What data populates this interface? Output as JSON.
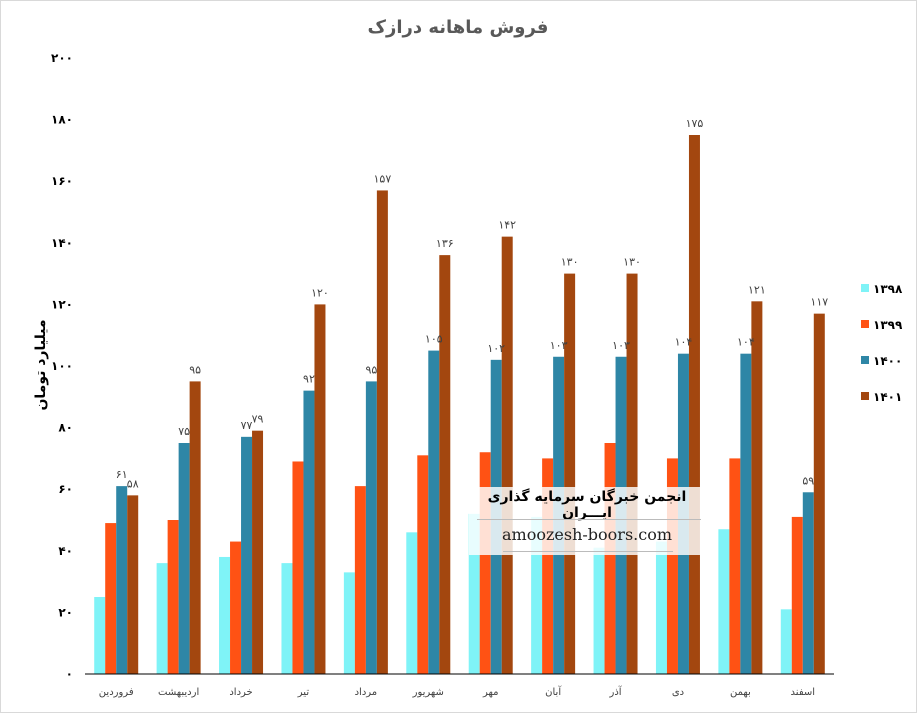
{
  "chart_data": {
    "type": "bar",
    "title": "فروش ماهانه درازک",
    "ylabel": "میلیارد تومان",
    "xlabel": "",
    "ylim": [
      0,
      200
    ],
    "yticks": [
      "۰",
      "۲۰",
      "۴۰",
      "۶۰",
      "۸۰",
      "۱۰۰",
      "۱۲۰",
      "۱۴۰",
      "۱۶۰",
      "۱۸۰",
      "۲۰۰"
    ],
    "ytick_values": [
      0,
      20,
      40,
      60,
      80,
      100,
      120,
      140,
      160,
      180,
      200
    ],
    "grid": false,
    "legend_position": "right",
    "categories": [
      "فروردین",
      "اردیبهشت",
      "خرداد",
      "تیر",
      "مرداد",
      "شهریور",
      "مهر",
      "آبان",
      "آذر",
      "دی",
      "بهمن",
      "اسفند"
    ],
    "series": [
      {
        "name": "۱۳۹۸",
        "color": "#7ff3f7",
        "values": [
          25,
          36,
          38,
          36,
          33,
          46,
          52,
          51,
          41,
          43,
          47,
          21
        ],
        "labels": [
          "",
          "",
          "",
          "",
          "",
          "",
          "",
          "",
          "",
          "",
          "",
          ""
        ]
      },
      {
        "name": "۱۳۹۹",
        "color": "#ff5214",
        "values": [
          49,
          50,
          43,
          69,
          61,
          71,
          72,
          70,
          75,
          70,
          70,
          51
        ],
        "labels": [
          "",
          "",
          "",
          "",
          "",
          "",
          "",
          "",
          "",
          "",
          "",
          ""
        ]
      },
      {
        "name": "۱۴۰۰",
        "color": "#2e86a6",
        "values": [
          61,
          75,
          77,
          92,
          95,
          105,
          102,
          103,
          103,
          104,
          104,
          59
        ],
        "labels": [
          "۶۱",
          "۷۵",
          "۷۷",
          "۹۲",
          "۹۵",
          "۱۰۵",
          "۱۰۲",
          "۱۰۳",
          "۱۰۳",
          "۱۰۴",
          "۱۰۴",
          "۵۹"
        ]
      },
      {
        "name": "۱۴۰۱",
        "color": "#a3470f",
        "values": [
          58,
          95,
          79,
          120,
          157,
          136,
          142,
          130,
          130,
          175,
          121,
          117
        ],
        "labels": [
          "۵۸",
          "۹۵",
          "۷۹",
          "۱۲۰",
          "۱۵۷",
          "۱۳۶",
          "۱۴۲",
          "۱۳۰",
          "۱۳۰",
          "۱۷۵",
          "۱۲۱",
          "۱۱۷"
        ]
      }
    ]
  },
  "watermark": {
    "title": "انجمن خبرگان سرمایه گذاری ایـــران",
    "url": "amoozesh-boors.com"
  }
}
